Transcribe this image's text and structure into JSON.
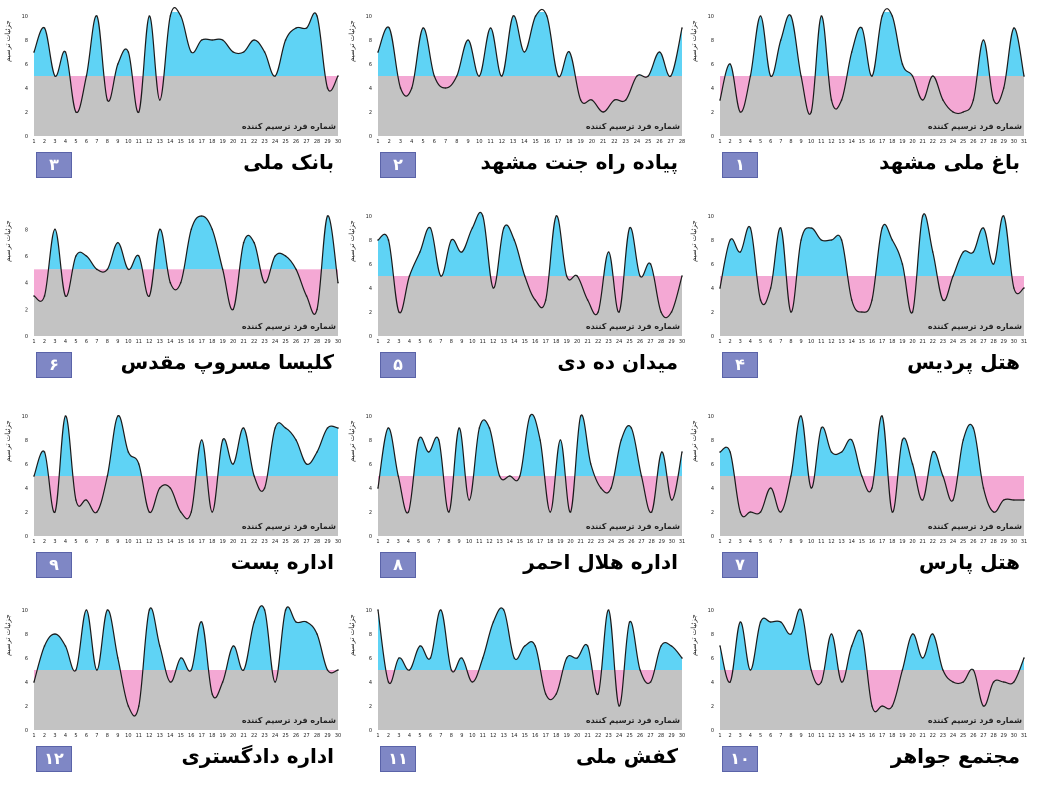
{
  "colors": {
    "above": "#5fd3f5",
    "below": "#f4a8d4",
    "base": "#c3c3c3",
    "line": "#1a1a1a",
    "badge": "#7f87c5"
  },
  "y_axis_label": "جزئیات ترسیم",
  "x_axis_label": "شماره فرد ترسیم کننده",
  "chart_data": [
    {
      "type": "area",
      "number": "۱",
      "title": "باغ ملی مشهد",
      "threshold": 5,
      "ylim": [
        0,
        10
      ],
      "yticks": [
        0,
        2,
        4,
        6,
        8,
        10
      ],
      "x": [
        1,
        2,
        3,
        4,
        5,
        6,
        7,
        8,
        9,
        10,
        11,
        12,
        13,
        14,
        15,
        16,
        17,
        18,
        19,
        20,
        21,
        22,
        23,
        24,
        25,
        26,
        27,
        28,
        29,
        30,
        31
      ],
      "values": [
        3,
        6,
        2,
        5,
        10,
        5,
        8,
        10,
        5,
        2,
        10,
        3,
        3,
        7,
        9,
        5,
        10,
        10,
        6,
        5,
        3,
        5,
        3,
        2,
        2,
        3,
        8,
        3,
        4,
        9,
        5
      ]
    },
    {
      "type": "area",
      "number": "۲",
      "title": "پیاده راه جنت مشهد",
      "threshold": 5,
      "ylim": [
        0,
        10
      ],
      "yticks": [
        0,
        2,
        4,
        6,
        8,
        10
      ],
      "x": [
        1,
        2,
        3,
        4,
        5,
        6,
        7,
        8,
        9,
        10,
        11,
        12,
        13,
        14,
        15,
        16,
        17,
        18,
        19,
        20,
        21,
        22,
        23,
        24,
        25,
        26,
        27,
        28
      ],
      "values": [
        7,
        9,
        4,
        4,
        9,
        5,
        4,
        5,
        8,
        5,
        9,
        5,
        10,
        7,
        10,
        10,
        5,
        7,
        3,
        3,
        2,
        3,
        3,
        5,
        5,
        7,
        5,
        9
      ]
    },
    {
      "type": "area",
      "number": "۳",
      "title": "بانک ملی",
      "threshold": 5,
      "ylim": [
        0,
        10
      ],
      "yticks": [
        0,
        2,
        4,
        6,
        8,
        10
      ],
      "x": [
        1,
        2,
        3,
        4,
        5,
        6,
        7,
        8,
        9,
        10,
        11,
        12,
        13,
        14,
        15,
        16,
        17,
        18,
        19,
        20,
        21,
        22,
        23,
        24,
        25,
        26,
        27,
        28,
        29,
        30
      ],
      "values": [
        7,
        9,
        5,
        7,
        2,
        5,
        10,
        3,
        6,
        7,
        2,
        10,
        3,
        10,
        10,
        7,
        8,
        8,
        8,
        7,
        7,
        8,
        7,
        5,
        8,
        9,
        9,
        10,
        4,
        5
      ]
    },
    {
      "type": "area",
      "number": "۴",
      "title": "هتل پردیس",
      "threshold": 5,
      "ylim": [
        0,
        10
      ],
      "yticks": [
        0,
        2,
        4,
        6,
        8,
        10
      ],
      "x": [
        1,
        2,
        3,
        4,
        5,
        6,
        7,
        8,
        9,
        10,
        11,
        12,
        13,
        14,
        15,
        16,
        17,
        18,
        19,
        20,
        21,
        22,
        23,
        24,
        25,
        26,
        27,
        28,
        29,
        30,
        31
      ],
      "values": [
        4,
        8,
        7,
        9,
        3,
        4,
        9,
        2,
        8,
        9,
        8,
        8,
        8,
        3,
        2,
        3,
        9,
        8,
        6,
        2,
        10,
        7,
        3,
        5,
        7,
        7,
        9,
        6,
        10,
        4,
        4
      ]
    },
    {
      "type": "area",
      "number": "۵",
      "title": "میدان ده دی",
      "threshold": 5,
      "ylim": [
        0,
        10
      ],
      "yticks": [
        0,
        2,
        4,
        6,
        8,
        10
      ],
      "x": [
        1,
        2,
        3,
        4,
        5,
        6,
        7,
        8,
        9,
        10,
        11,
        12,
        13,
        14,
        15,
        16,
        17,
        18,
        19,
        20,
        21,
        22,
        23,
        24,
        25,
        26,
        27,
        28,
        29,
        30
      ],
      "values": [
        8,
        8,
        2,
        5,
        7,
        9,
        5,
        8,
        7,
        9,
        10,
        4,
        9,
        8,
        5,
        3,
        3,
        10,
        5,
        5,
        3,
        2,
        7,
        2,
        9,
        5,
        6,
        2,
        2,
        5
      ]
    },
    {
      "type": "area",
      "number": "۶",
      "title": "کلیسا مسروپ مقدس",
      "threshold": 5,
      "ylim": [
        0,
        9
      ],
      "yticks": [
        0,
        2,
        4,
        6,
        8
      ],
      "x": [
        1,
        2,
        3,
        4,
        5,
        6,
        7,
        8,
        9,
        10,
        11,
        12,
        13,
        14,
        15,
        16,
        17,
        18,
        19,
        20,
        21,
        22,
        23,
        24,
        25,
        26,
        27,
        28,
        29,
        30
      ],
      "values": [
        3,
        3,
        8,
        3,
        6,
        6,
        5,
        5,
        7,
        5,
        6,
        3,
        8,
        4,
        4,
        8,
        9,
        8,
        5,
        2,
        7,
        7,
        4,
        6,
        6,
        5,
        3,
        2,
        9,
        4
      ]
    },
    {
      "type": "area",
      "number": "۷",
      "title": "هتل پارس",
      "threshold": 5,
      "ylim": [
        0,
        10
      ],
      "yticks": [
        0,
        2,
        4,
        6,
        8,
        10
      ],
      "x": [
        1,
        2,
        3,
        4,
        5,
        6,
        7,
        8,
        9,
        10,
        11,
        12,
        13,
        14,
        15,
        16,
        17,
        18,
        19,
        20,
        21,
        22,
        23,
        24,
        25,
        26,
        27,
        28,
        29,
        30,
        31
      ],
      "values": [
        7,
        7,
        2,
        2,
        2,
        4,
        2,
        5,
        10,
        4,
        9,
        7,
        7,
        8,
        5,
        4,
        10,
        2,
        8,
        6,
        3,
        7,
        5,
        3,
        8,
        9,
        4,
        2,
        3,
        3,
        3
      ]
    },
    {
      "type": "area",
      "number": "۸",
      "title": "اداره هلال احمر",
      "threshold": 5,
      "ylim": [
        0,
        10
      ],
      "yticks": [
        0,
        2,
        4,
        6,
        8,
        10
      ],
      "x": [
        1,
        2,
        3,
        4,
        5,
        6,
        7,
        8,
        9,
        10,
        11,
        12,
        13,
        14,
        15,
        16,
        17,
        18,
        19,
        20,
        21,
        22,
        23,
        24,
        25,
        26,
        27,
        28,
        29,
        30,
        31
      ],
      "values": [
        4,
        9,
        5,
        2,
        8,
        7,
        8,
        2,
        9,
        3,
        9,
        9,
        5,
        5,
        5,
        10,
        8,
        2,
        8,
        2,
        10,
        6,
        4,
        4,
        8,
        9,
        5,
        2,
        7,
        3,
        7
      ]
    },
    {
      "type": "area",
      "number": "۹",
      "title": "اداره پست",
      "threshold": 5,
      "ylim": [
        0,
        10
      ],
      "yticks": [
        0,
        2,
        4,
        6,
        8,
        10
      ],
      "x": [
        1,
        2,
        3,
        4,
        5,
        6,
        7,
        8,
        9,
        10,
        11,
        12,
        13,
        14,
        15,
        16,
        17,
        18,
        19,
        20,
        21,
        22,
        23,
        24,
        25,
        26,
        27,
        28,
        29,
        30
      ],
      "values": [
        5,
        7,
        2,
        10,
        3,
        3,
        2,
        5,
        10,
        7,
        6,
        2,
        4,
        4,
        2,
        2,
        8,
        2,
        8,
        6,
        9,
        5,
        4,
        9,
        9,
        8,
        6,
        7,
        9,
        9
      ]
    },
    {
      "type": "area",
      "number": "۱۰",
      "title": "مجتمع جواهر",
      "threshold": 5,
      "ylim": [
        0,
        10
      ],
      "yticks": [
        0,
        2,
        4,
        6,
        8,
        10
      ],
      "x": [
        1,
        2,
        3,
        4,
        5,
        6,
        7,
        8,
        9,
        10,
        11,
        12,
        13,
        14,
        15,
        16,
        17,
        18,
        19,
        20,
        21,
        22,
        23,
        24,
        25,
        26,
        27,
        28,
        29,
        30,
        31
      ],
      "values": [
        7,
        4,
        9,
        5,
        9,
        9,
        9,
        8,
        10,
        5,
        4,
        8,
        4,
        7,
        8,
        2,
        2,
        2,
        5,
        8,
        6,
        8,
        5,
        4,
        4,
        5,
        2,
        4,
        4,
        4,
        6
      ]
    },
    {
      "type": "area",
      "number": "۱۱",
      "title": "کفش ملی",
      "threshold": 5,
      "ylim": [
        0,
        10
      ],
      "yticks": [
        0,
        2,
        4,
        6,
        8,
        10
      ],
      "x": [
        1,
        2,
        3,
        4,
        5,
        6,
        7,
        8,
        9,
        10,
        11,
        12,
        13,
        14,
        15,
        16,
        17,
        18,
        19,
        20,
        21,
        22,
        23,
        24,
        25,
        26,
        27,
        28,
        29,
        30
      ],
      "values": [
        10,
        4,
        6,
        5,
        7,
        6,
        10,
        5,
        6,
        4,
        6,
        9,
        10,
        6,
        7,
        7,
        3,
        3,
        6,
        6,
        7,
        3,
        10,
        2,
        9,
        5,
        4,
        7,
        7,
        6
      ]
    },
    {
      "type": "area",
      "number": "۱۲",
      "title": "اداره دادگستری",
      "threshold": 5,
      "ylim": [
        0,
        10
      ],
      "yticks": [
        0,
        2,
        4,
        6,
        8,
        10
      ],
      "x": [
        1,
        2,
        3,
        4,
        5,
        6,
        7,
        8,
        9,
        10,
        11,
        12,
        13,
        14,
        15,
        16,
        17,
        18,
        19,
        20,
        21,
        22,
        23,
        24,
        25,
        26,
        27,
        28,
        29,
        30
      ],
      "values": [
        4,
        7,
        8,
        7,
        5,
        10,
        5,
        10,
        6,
        2,
        2,
        10,
        7,
        4,
        6,
        5,
        9,
        3,
        4,
        7,
        5,
        9,
        10,
        4,
        10,
        9,
        9,
        8,
        5,
        5
      ]
    }
  ]
}
